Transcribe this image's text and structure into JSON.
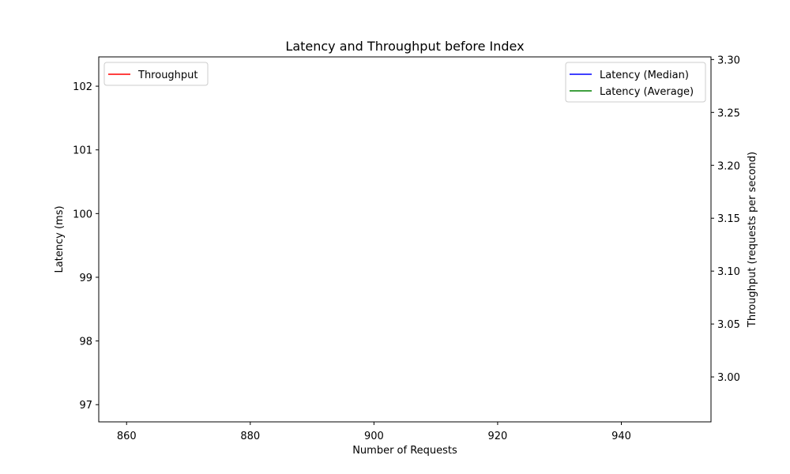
{
  "chart_data": {
    "type": "line",
    "title": "Latency and Throughput before Index",
    "xlabel": "Number of Requests",
    "ylabel": "Latency (ms)",
    "y2label": "Throughput (requests per second)",
    "xlim": [
      855.5,
      954.5
    ],
    "ylim": [
      96.73,
      102.46
    ],
    "y2lim": [
      2.9575,
      3.3025
    ],
    "xticks": [
      860,
      880,
      900,
      920,
      940
    ],
    "yticks": [
      97,
      98,
      99,
      100,
      101,
      102
    ],
    "y2ticks": [
      "3.00",
      "3.05",
      "3.10",
      "3.15",
      "3.20",
      "3.25",
      "3.30"
    ],
    "grid": false,
    "series": [
      {
        "name": "Latency (Median)",
        "axis": "left",
        "color": "#0000ff",
        "x": [],
        "values": []
      },
      {
        "name": "Latency (Average)",
        "axis": "left",
        "color": "#008000",
        "x": [],
        "values": []
      },
      {
        "name": "Throughput",
        "axis": "right",
        "color": "#ff0000",
        "x": [],
        "values": []
      }
    ],
    "legends": [
      {
        "placement": "top-left",
        "entries": [
          "Throughput"
        ]
      },
      {
        "placement": "top-right",
        "entries": [
          "Latency (Median)",
          "Latency (Average)"
        ]
      }
    ]
  }
}
